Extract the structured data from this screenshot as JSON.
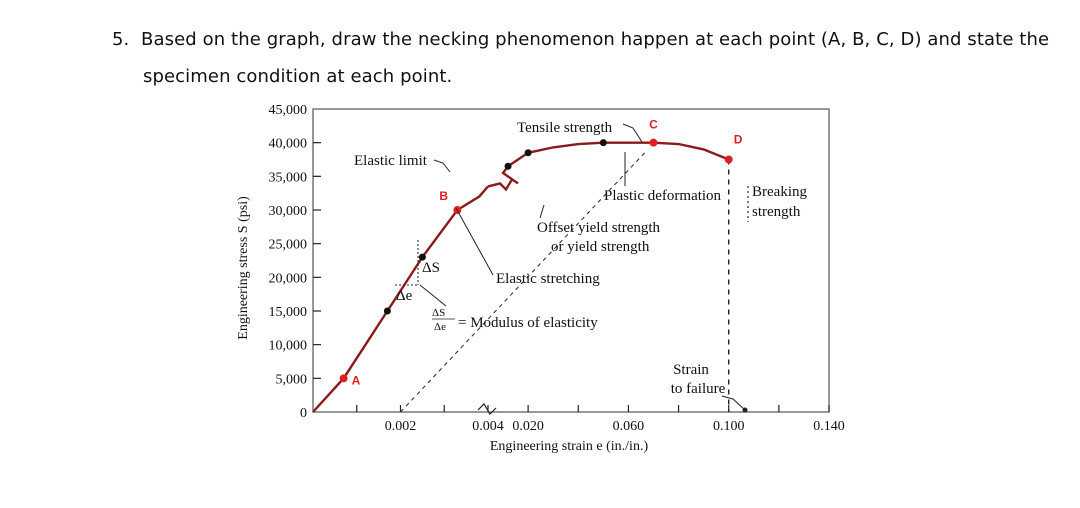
{
  "question": {
    "number": "5.",
    "line1": "Based on the graph, draw the necking phenomenon happen at each point (A, B, C, D) and state the",
    "line2": "specimen condition at each point."
  },
  "colors": {
    "curve": "#8b1a1a",
    "point_marker": "#e02020",
    "point_label": "#e02020",
    "dot": "#111111",
    "plot_border": "#555555"
  },
  "chart_data": {
    "type": "line",
    "ylabel": "Engineering stress S (psi)",
    "xlabel": "Engineering strain e (in./in.)",
    "ylim": [
      0,
      45000
    ],
    "y_ticks": [
      {
        "value": 45000,
        "label": "45,000"
      },
      {
        "value": 40000,
        "label": "40,000"
      },
      {
        "value": 35000,
        "label": "35,000"
      },
      {
        "value": 30000,
        "label": "30,000"
      },
      {
        "value": 25000,
        "label": "25,000"
      },
      {
        "value": 20000,
        "label": "20,000"
      },
      {
        "value": 15000,
        "label": "15,000"
      },
      {
        "value": 10000,
        "label": "10,000"
      },
      {
        "value": 5000,
        "label": "5,000"
      },
      {
        "value": 0,
        "label": "0"
      }
    ],
    "x_segments": {
      "elastic": {
        "range": [
          0,
          0.004
        ],
        "ticks": [
          {
            "value": 0.002,
            "label": "0.002"
          },
          {
            "value": 0.004,
            "label": "0.004"
          }
        ]
      },
      "plastic": {
        "range": [
          0.004,
          0.14
        ],
        "ticks": [
          {
            "value": 0.02,
            "label": "0.020"
          },
          {
            "value": 0.06,
            "label": "0.060"
          },
          {
            "value": 0.1,
            "label": "0.100"
          },
          {
            "value": 0.14,
            "label": "0.140"
          }
        ]
      }
    },
    "curve_elastic": [
      {
        "x": 0,
        "y": 0
      },
      {
        "x": 0.0007,
        "y": 5000
      },
      {
        "x": 0.0017,
        "y": 15000
      },
      {
        "x": 0.0025,
        "y": 23000
      },
      {
        "x": 0.0033,
        "y": 30000
      },
      {
        "x": 0.0038,
        "y": 32000
      },
      {
        "x": 0.004,
        "y": 33500
      }
    ],
    "curve_plastic": [
      {
        "x": 0.004,
        "y": 33500
      },
      {
        "x": 0.01,
        "y": 35500
      },
      {
        "x": 0.012,
        "y": 36500
      },
      {
        "x": 0.02,
        "y": 38500
      },
      {
        "x": 0.03,
        "y": 39300
      },
      {
        "x": 0.04,
        "y": 39800
      },
      {
        "x": 0.05,
        "y": 40000
      },
      {
        "x": 0.06,
        "y": 40000
      },
      {
        "x": 0.07,
        "y": 40000
      },
      {
        "x": 0.08,
        "y": 39800
      },
      {
        "x": 0.09,
        "y": 39000
      },
      {
        "x": 0.1,
        "y": 37500
      }
    ],
    "offset_line": [
      {
        "x": 0.002,
        "y": 0
      },
      {
        "x": 0.0058,
        "y": 38500
      }
    ],
    "breaking_line_x": 0.1,
    "dots": [
      {
        "segment": "elastic",
        "x": 0.0017,
        "y": 15000
      },
      {
        "segment": "elastic",
        "x": 0.0025,
        "y": 23000
      },
      {
        "segment": "plastic",
        "x": 0.012,
        "y": 36500
      },
      {
        "segment": "plastic",
        "x": 0.02,
        "y": 38500
      },
      {
        "segment": "plastic",
        "x": 0.05,
        "y": 40000
      }
    ],
    "points": [
      {
        "label": "A",
        "segment": "elastic",
        "x": 0.0007,
        "y": 5000
      },
      {
        "label": "B",
        "segment": "elastic",
        "x": 0.0033,
        "y": 30000
      },
      {
        "label": "C",
        "segment": "plastic",
        "x": 0.07,
        "y": 40000
      },
      {
        "label": "D",
        "segment": "plastic",
        "x": 0.1,
        "y": 37500
      }
    ],
    "annotations": {
      "tensile_strength": "Tensile strength",
      "elastic_limit": "Elastic limit",
      "plastic_deformation": "Plastic deformation",
      "breaking_strength_1": "Breaking",
      "breaking_strength_2": "strength",
      "offset_yield_1": "Offset yield strength",
      "offset_yield_2": "or yield strength",
      "elastic_stretching": "Elastic stretching",
      "delta_s": "ΔS",
      "delta_e": "Δe",
      "modulus": "= Modulus of elasticity",
      "strain_to_failure_1": "Strain",
      "strain_to_failure_2": "to failure"
    }
  }
}
